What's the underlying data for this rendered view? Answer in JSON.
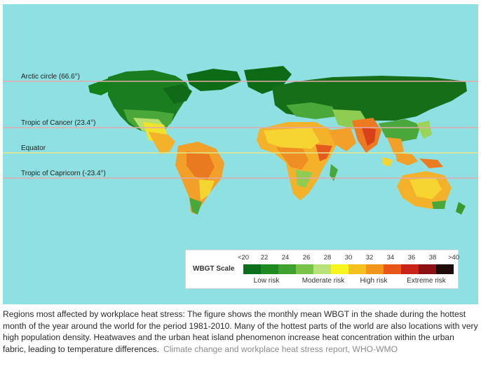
{
  "map": {
    "background_color": "#8ee0e2",
    "latitude_lines": [
      {
        "label": "Arctic circle (66.6°)",
        "line_color": "#e3a9a9"
      },
      {
        "label": "Tropic of Cancer (23.4°)",
        "line_color": "#e3a9a9"
      },
      {
        "label": "Equator",
        "line_color": "#e6e68a"
      },
      {
        "label": "Tropic of Capricorn (-23.4°)",
        "line_color": "#e3a9a9"
      }
    ]
  },
  "legend": {
    "title": "WBGT Scale",
    "ticks": [
      "<20",
      "22",
      "24",
      "26",
      "28",
      "30",
      "32",
      "34",
      "36",
      "38",
      ">40"
    ],
    "colors": [
      "#0b6e1a",
      "#1f8a22",
      "#3fa12e",
      "#77c247",
      "#b9e37a",
      "#f6f51f",
      "#f4c21c",
      "#f2951b",
      "#e8561a",
      "#c9231a",
      "#8c0f12",
      "#1e0a0a"
    ],
    "categories": [
      "Low risk",
      "Moderate risk",
      "High risk",
      "Extreme risk"
    ]
  },
  "caption": {
    "text": "Regions most affected by workplace heat stress: The figure shows the monthly mean WBGT in the shade during the hottest month of the year around the world for the period 1981-2010. Many of the hottest parts of the world are also locations with very high population density. Heatwaves and the urban heat island phenomenon increase heat concentration within the urban fabric, leading to temperature differences.",
    "source": "Climate change and workplace heat stress report, WHO-WMO"
  }
}
